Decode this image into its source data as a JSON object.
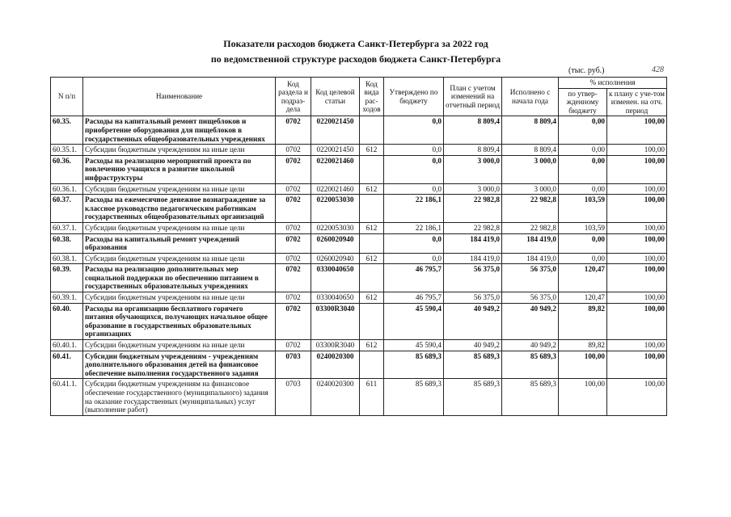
{
  "header": {
    "title": [
      "Показатели расходов бюджета Санкт-Петербурга за 2022 год",
      "по ведомственной структуре расходов бюджета Санкт-Петербурга"
    ],
    "units": "(тыс. руб.)",
    "page_number": "428"
  },
  "table": {
    "columns": [
      "N п/п",
      "Наименование",
      "Код раздела и подраз-дела",
      "Код целевой статьи",
      "Код вида рас-ходов",
      "Утверждено по бюджету",
      "План с учетом изменений на отчетный период",
      "Исполнено с начала года"
    ],
    "group_column": {
      "title": "% исполнения",
      "subcolumns": [
        "по утвер-жденному бюджету",
        "к плану с уче-том изменен. на отч. период"
      ]
    },
    "rows": [
      {
        "bold": true,
        "cells": [
          "60.35.",
          "Расходы на капитальный ремонт пищеблоков и приобретение оборудования для пищеблоков в государственных общеобразовательных учреждениях",
          "0702",
          "0220021450",
          null,
          "0,0",
          "8 809,4",
          "8 809,4",
          "0,00",
          "100,00"
        ]
      },
      {
        "bold": false,
        "cells": [
          "60.35.1.",
          "Субсидии бюджетным учреждениям на иные цели",
          "0702",
          "0220021450",
          "612",
          "0,0",
          "8 809,4",
          "8 809,4",
          "0,00",
          "100,00"
        ]
      },
      {
        "bold": true,
        "cells": [
          "60.36.",
          "Расходы на реализацию мероприятий проекта по вовлечению учащихся в развитие школьной инфраструктуры",
          "0702",
          "0220021460",
          null,
          "0,0",
          "3 000,0",
          "3 000,0",
          "0,00",
          "100,00"
        ]
      },
      {
        "bold": false,
        "cells": [
          "60.36.1.",
          "Субсидии бюджетным учреждениям на иные цели",
          "0702",
          "0220021460",
          "612",
          "0,0",
          "3 000,0",
          "3 000,0",
          "0,00",
          "100,00"
        ]
      },
      {
        "bold": true,
        "cells": [
          "60.37.",
          "Расходы на ежемесячное денежное вознаграждение за классное руководство педагогическим работникам государственных общеобразовательных организаций",
          "0702",
          "0220053030",
          null,
          "22 186,1",
          "22 982,8",
          "22 982,8",
          "103,59",
          "100,00"
        ]
      },
      {
        "bold": false,
        "cells": [
          "60.37.1.",
          "Субсидии бюджетным учреждениям на иные цели",
          "0702",
          "0220053030",
          "612",
          "22 186,1",
          "22 982,8",
          "22 982,8",
          "103,59",
          "100,00"
        ]
      },
      {
        "bold": true,
        "cells": [
          "60.38.",
          "Расходы на капитальный ремонт учреждений образования",
          "0702",
          "0260020940",
          null,
          "0,0",
          "184 419,0",
          "184 419,0",
          "0,00",
          "100,00"
        ]
      },
      {
        "bold": false,
        "cells": [
          "60.38.1.",
          "Субсидии бюджетным учреждениям на иные цели",
          "0702",
          "0260020940",
          "612",
          "0,0",
          "184 419,0",
          "184 419,0",
          "0,00",
          "100,00"
        ]
      },
      {
        "bold": true,
        "cells": [
          "60.39.",
          "Расходы на реализацию дополнительных мер социальной поддержки по обеспечению питанием в государственных образовательных учреждениях",
          "0702",
          "0330040650",
          null,
          "46 795,7",
          "56 375,0",
          "56 375,0",
          "120,47",
          "100,00"
        ]
      },
      {
        "bold": false,
        "cells": [
          "60.39.1.",
          "Субсидии бюджетным учреждениям на иные цели",
          "0702",
          "0330040650",
          "612",
          "46 795,7",
          "56 375,0",
          "56 375,0",
          "120,47",
          "100,00"
        ]
      },
      {
        "bold": true,
        "cells": [
          "60.40.",
          "Расходы на организацию бесплатного горячего питания обучающихся, получающих начальное общее образование в государственных образовательных организациях",
          "0702",
          "03300R3040",
          null,
          "45 590,4",
          "40 949,2",
          "40 949,2",
          "89,82",
          "100,00"
        ]
      },
      {
        "bold": false,
        "cells": [
          "60.40.1.",
          "Субсидии бюджетным учреждениям на иные цели",
          "0702",
          "03300R3040",
          "612",
          "45 590,4",
          "40 949,2",
          "40 949,2",
          "89,82",
          "100,00"
        ]
      },
      {
        "bold": true,
        "cells": [
          "60.41.",
          "Субсидии бюджетным учреждениям - учреждениям дополнительного образования детей на финансовое обеспечение выполнения государственного задания",
          "0703",
          "0240020300",
          null,
          "85 689,3",
          "85 689,3",
          "85 689,3",
          "100,00",
          "100,00"
        ]
      },
      {
        "bold": false,
        "cells": [
          "60.41.1.",
          "Субсидии бюджетным учреждениям на финансовое обеспечение государственного (муниципального) задания на оказание государственных (муниципальных) услуг (выполнение работ)",
          "0703",
          "0240020300",
          "611",
          "85 689,3",
          "85 689,3",
          "85 689,3",
          "100,00",
          "100,00"
        ]
      }
    ]
  }
}
